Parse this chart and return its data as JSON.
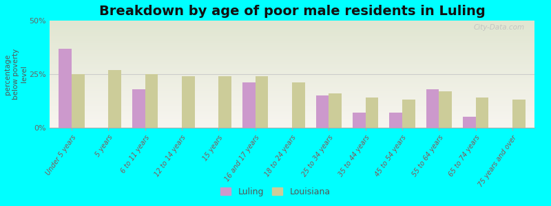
{
  "title": "Breakdown by age of poor male residents in Luling",
  "ylabel": "percentage\nbelow poverty\nlevel",
  "categories": [
    "Under 5 years",
    "5 years",
    "6 to 11 years",
    "12 to 14 years",
    "15 years",
    "16 and 17 years",
    "18 to 24 years",
    "25 to 34 years",
    "35 to 44 years",
    "45 to 54 years",
    "55 to 64 years",
    "65 to 74 years",
    "75 years and over"
  ],
  "luling_values": [
    37,
    0,
    18,
    0,
    0,
    21,
    0,
    15,
    7,
    7,
    18,
    5,
    0
  ],
  "louisiana_values": [
    25,
    27,
    25,
    24,
    24,
    24,
    21,
    16,
    14,
    13,
    17,
    14,
    13
  ],
  "luling_color": "#cc99cc",
  "louisiana_color": "#cccc99",
  "background_color": "#00ffff",
  "ylim": [
    0,
    50
  ],
  "yticks": [
    0,
    25,
    50
  ],
  "ytick_labels": [
    "0%",
    "25%",
    "50%"
  ],
  "bar_width": 0.35,
  "title_fontsize": 14,
  "watermark": "City-Data.com"
}
